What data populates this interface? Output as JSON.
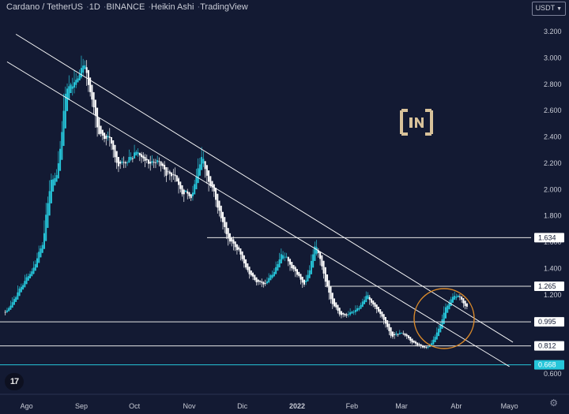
{
  "title": {
    "symbol": "Cardano / TetherUS",
    "interval": "1D",
    "exchange": "BINANCE",
    "style": "Heikin Ashi",
    "source": "TradingView"
  },
  "currency_label": "USDT",
  "colors": {
    "background": "#131a33",
    "up": "#26c6da",
    "down": "#ffffff",
    "trendline": "#ffffff",
    "circle": "#d9892a",
    "highlight_label": "#26c6da"
  },
  "chart_data": {
    "type": "candlestick",
    "style": "Heikin Ashi",
    "ylim": [
      0.52,
      3.32
    ],
    "y_ticks": [
      "3.200",
      "3.000",
      "2.800",
      "2.600",
      "2.400",
      "2.200",
      "2.000",
      "1.800",
      "1.400",
      "1.200",
      "0.600"
    ],
    "x_ticks": [
      "Ago",
      "Sep",
      "Oct",
      "Nov",
      "Dic",
      "2022",
      "Feb",
      "Mar",
      "Abr",
      "Mayo"
    ],
    "horizontal_levels": [
      {
        "label": "1.634",
        "value": 1.634,
        "highlight": false
      },
      {
        "label": "1.265",
        "value": 1.265,
        "highlight": false
      },
      {
        "label": "0.995",
        "value": 0.995,
        "highlight": false
      },
      {
        "label": "0.812",
        "value": 0.812,
        "highlight": false
      },
      {
        "label": "0.668",
        "value": 0.668,
        "highlight": true
      }
    ],
    "trendlines": [
      {
        "from": [
          "2021-07-26",
          3.18
        ],
        "to": [
          "2022-05-03",
          0.84
        ]
      },
      {
        "from": [
          "2021-07-21",
          2.97
        ],
        "to": [
          "2022-05-01",
          0.655
        ]
      }
    ],
    "ohlc_approx": [
      [
        "2021-07-20",
        1.07
      ],
      [
        "2021-07-28",
        1.25
      ],
      [
        "2021-08-05",
        1.42
      ],
      [
        "2021-08-10",
        1.62
      ],
      [
        "2021-08-14",
        2.05
      ],
      [
        "2021-08-18",
        2.12
      ],
      [
        "2021-08-23",
        2.78
      ],
      [
        "2021-08-28",
        2.82
      ],
      [
        "2021-09-02",
        2.96
      ],
      [
        "2021-09-06",
        2.72
      ],
      [
        "2021-09-10",
        2.45
      ],
      [
        "2021-09-16",
        2.4
      ],
      [
        "2021-09-21",
        2.18
      ],
      [
        "2021-09-26",
        2.22
      ],
      [
        "2021-10-01",
        2.28
      ],
      [
        "2021-10-06",
        2.2
      ],
      [
        "2021-10-13",
        2.23
      ],
      [
        "2021-10-18",
        2.14
      ],
      [
        "2021-10-22",
        2.12
      ],
      [
        "2021-10-27",
        1.98
      ],
      [
        "2021-11-02",
        1.96
      ],
      [
        "2021-11-08",
        2.26
      ],
      [
        "2021-11-12",
        2.06
      ],
      [
        "2021-11-18",
        1.82
      ],
      [
        "2021-11-23",
        1.62
      ],
      [
        "2021-11-28",
        1.56
      ],
      [
        "2021-12-03",
        1.4
      ],
      [
        "2021-12-08",
        1.3
      ],
      [
        "2021-12-13",
        1.28
      ],
      [
        "2021-12-18",
        1.38
      ],
      [
        "2021-12-23",
        1.52
      ],
      [
        "2021-12-27",
        1.44
      ],
      [
        "2022-01-01",
        1.34
      ],
      [
        "2022-01-05",
        1.26
      ],
      [
        "2022-01-11",
        1.58
      ],
      [
        "2022-01-15",
        1.38
      ],
      [
        "2022-01-20",
        1.14
      ],
      [
        "2022-01-25",
        1.04
      ],
      [
        "2022-01-31",
        1.06
      ],
      [
        "2022-02-05",
        1.12
      ],
      [
        "2022-02-09",
        1.2
      ],
      [
        "2022-02-13",
        1.12
      ],
      [
        "2022-02-18",
        1.02
      ],
      [
        "2022-02-23",
        0.88
      ],
      [
        "2022-02-28",
        0.92
      ],
      [
        "2022-03-04",
        0.88
      ],
      [
        "2022-03-09",
        0.82
      ],
      [
        "2022-03-14",
        0.8
      ],
      [
        "2022-03-18",
        0.84
      ],
      [
        "2022-03-22",
        0.96
      ],
      [
        "2022-03-26",
        1.12
      ],
      [
        "2022-03-30",
        1.18
      ],
      [
        "2022-04-03",
        1.18
      ],
      [
        "2022-04-07",
        1.1
      ]
    ]
  }
}
